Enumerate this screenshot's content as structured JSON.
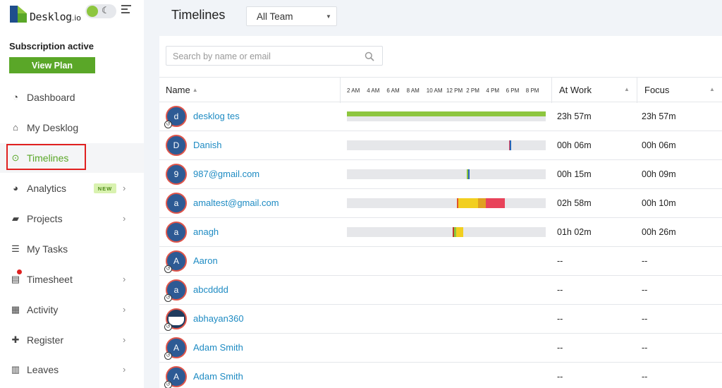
{
  "brand": {
    "name": "Desklog",
    "suffix": ".io"
  },
  "subscription": {
    "status": "Subscription active",
    "button": "View Plan"
  },
  "nav": [
    {
      "label": "Dashboard",
      "icon": "dashboard-icon",
      "glyph": "◔",
      "chevron": false
    },
    {
      "label": "My Desklog",
      "icon": "home-icon",
      "glyph": "⌂",
      "chevron": false
    },
    {
      "label": "Timelines",
      "icon": "clock-icon",
      "glyph": "⊙",
      "chevron": false,
      "active": true
    },
    {
      "label": "Analytics",
      "icon": "pie-chart-icon",
      "glyph": "◕",
      "chevron": true,
      "badge": "NEW"
    },
    {
      "label": "Projects",
      "icon": "book-icon",
      "glyph": "▰",
      "chevron": true
    },
    {
      "label": "My Tasks",
      "icon": "tasks-icon",
      "glyph": "☰",
      "chevron": false
    },
    {
      "label": "Timesheet",
      "icon": "timesheet-icon",
      "glyph": "▤",
      "chevron": true
    },
    {
      "label": "Activity",
      "icon": "grid-icon",
      "glyph": "▦",
      "chevron": true
    },
    {
      "label": "Register",
      "icon": "plus-icon",
      "glyph": "✚",
      "chevron": true
    },
    {
      "label": "Leaves",
      "icon": "calendar-icon",
      "glyph": "▥",
      "chevron": true
    }
  ],
  "header": {
    "title": "Timelines",
    "team_select": "All Team"
  },
  "search": {
    "placeholder": "Search by name or email"
  },
  "table": {
    "col_name": "Name",
    "col_atwork": "At Work",
    "col_focus": "Focus",
    "hours": [
      "2 AM",
      "4 AM",
      "6 AM",
      "8 AM",
      "10 AM",
      "12 PM",
      "2 PM",
      "4 PM",
      "6 PM",
      "8 PM"
    ]
  },
  "colors": {
    "accent": "#5aa728",
    "link": "#1e8bc3",
    "active_seg": "#8dc63f",
    "idle_seg": "#f2cf1f",
    "break_seg": "#e8435a",
    "work_seg": "#2866b8"
  },
  "rows": [
    {
      "initial": "d",
      "name": "desklog tes",
      "at_work": "23h 57m",
      "focus": "23h 57m",
      "history": true,
      "segments": [
        {
          "start": 0,
          "end": 1.0,
          "color": "#8dc63f",
          "half": "top"
        }
      ]
    },
    {
      "initial": "D",
      "name": "Danish",
      "at_work": "00h 06m",
      "focus": "00h 06m",
      "history": false,
      "segments": [
        {
          "start": 0.815,
          "end": 0.82,
          "color": "#e8435a"
        },
        {
          "start": 0.82,
          "end": 0.827,
          "color": "#2866b8"
        }
      ]
    },
    {
      "initial": "9",
      "name": "987@gmail.com",
      "at_work": "00h 15m",
      "focus": "00h 09m",
      "history": false,
      "segments": [
        {
          "start": 0.604,
          "end": 0.61,
          "color": "#8dc63f"
        },
        {
          "start": 0.61,
          "end": 0.616,
          "color": "#2866b8"
        }
      ]
    },
    {
      "initial": "a",
      "name": "amaltest@gmail.com",
      "at_work": "02h 58m",
      "focus": "00h 10m",
      "history": false,
      "segments": [
        {
          "start": 0.554,
          "end": 0.56,
          "color": "#e0552a"
        },
        {
          "start": 0.56,
          "end": 0.66,
          "color": "#f2cf1f"
        },
        {
          "start": 0.66,
          "end": 0.7,
          "color": "#e0a020"
        },
        {
          "start": 0.7,
          "end": 0.795,
          "color": "#e8435a"
        }
      ]
    },
    {
      "initial": "a",
      "name": "anagh",
      "at_work": "01h 02m",
      "focus": "00h 26m",
      "history": false,
      "segments": [
        {
          "start": 0.532,
          "end": 0.54,
          "color": "#c0392b"
        },
        {
          "start": 0.54,
          "end": 0.55,
          "color": "#8dc63f"
        },
        {
          "start": 0.55,
          "end": 0.585,
          "color": "#f2cf1f"
        }
      ]
    },
    {
      "initial": "A",
      "name": "Aaron",
      "at_work": "--",
      "focus": "--",
      "history": true,
      "segments": null
    },
    {
      "initial": "a",
      "name": "abcdddd",
      "at_work": "--",
      "focus": "--",
      "history": true,
      "segments": null
    },
    {
      "initial": "",
      "name": "abhayan360",
      "at_work": "--",
      "focus": "--",
      "history": true,
      "photo": true,
      "segments": null
    },
    {
      "initial": "A",
      "name": "Adam Smith",
      "at_work": "--",
      "focus": "--",
      "history": true,
      "segments": null
    },
    {
      "initial": "A",
      "name": "Adam Smith",
      "at_work": "--",
      "focus": "--",
      "history": true,
      "segments": null
    }
  ]
}
